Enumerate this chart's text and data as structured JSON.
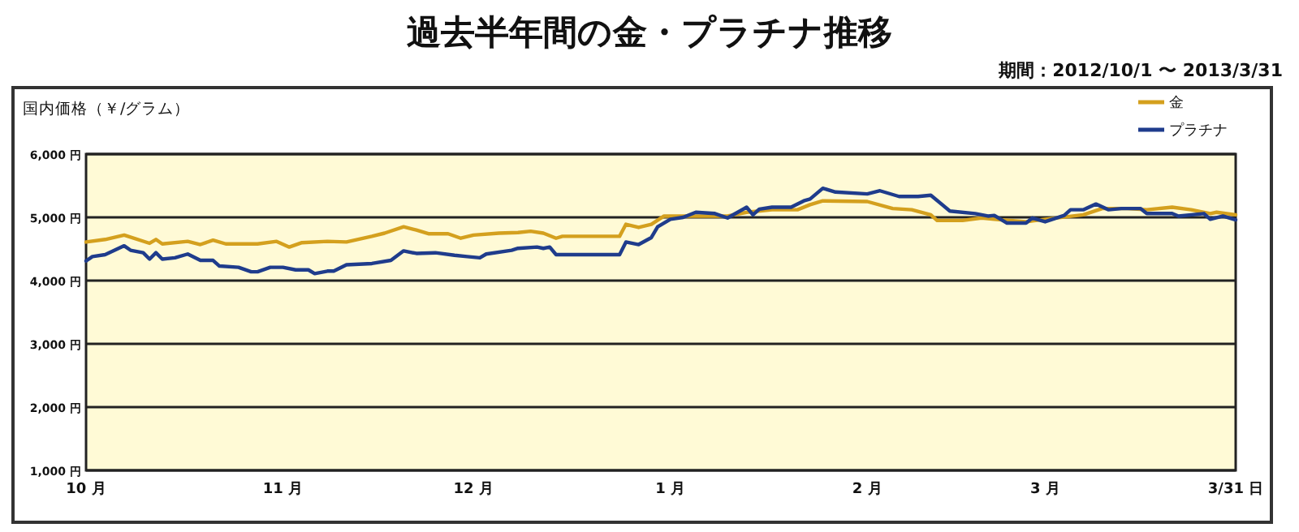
{
  "chart_data": {
    "type": "line",
    "title": "過去半年間の金・プラチナ推移",
    "subtitle": "期間：2012/10/1 〜 2013/3/31",
    "ylabel": "国内価格（￥/グラム）",
    "xlim": [
      "2012-10-01",
      "2013-03-31"
    ],
    "xticks": [
      {
        "value": "2012-10-01",
        "label": "10 月"
      },
      {
        "value": "2012-11-01",
        "label": "11 月"
      },
      {
        "value": "2012-12-01",
        "label": "12 月"
      },
      {
        "value": "2013-01-01",
        "label": "1 月"
      },
      {
        "value": "2013-02-01",
        "label": "2 月"
      },
      {
        "value": "2013-03-01",
        "label": "3 月"
      },
      {
        "value": "2013-03-31",
        "label": "3/31 日"
      }
    ],
    "ylim": [
      1000,
      6000
    ],
    "yticks": [
      {
        "value": 1000,
        "label": "1,000 円"
      },
      {
        "value": 2000,
        "label": "2,000 円"
      },
      {
        "value": 3000,
        "label": "3,000 円"
      },
      {
        "value": 4000,
        "label": "4,000 円"
      },
      {
        "value": 5000,
        "label": "5,000 円"
      },
      {
        "value": 6000,
        "label": "6,000 円"
      }
    ],
    "grid": "y",
    "legend": "top right",
    "series": [
      {
        "name": "金",
        "color": "#d4a01e",
        "x": [
          "2012-10-01",
          "2012-10-04",
          "2012-10-07",
          "2012-10-11",
          "2012-10-12",
          "2012-10-13",
          "2012-10-17",
          "2012-10-19",
          "2012-10-21",
          "2012-10-23",
          "2012-10-28",
          "2012-10-31",
          "2012-11-02",
          "2012-11-04",
          "2012-11-08",
          "2012-11-11",
          "2012-11-15",
          "2012-11-17",
          "2012-11-20",
          "2012-11-22",
          "2012-11-24",
          "2012-11-27",
          "2012-11-29",
          "2012-12-01",
          "2012-12-05",
          "2012-12-08",
          "2012-12-10",
          "2012-12-12",
          "2012-12-14",
          "2012-12-15",
          "2012-12-19",
          "2012-12-24",
          "2012-12-25",
          "2012-12-27",
          "2012-12-29",
          "2012-12-31",
          "2013-01-10",
          "2013-01-13",
          "2013-01-17",
          "2013-01-21",
          "2013-01-23",
          "2013-01-25",
          "2013-02-01",
          "2013-02-05",
          "2013-02-08",
          "2013-02-11",
          "2013-02-12",
          "2013-02-16",
          "2013-02-19",
          "2013-02-21",
          "2013-02-26",
          "2013-03-01",
          "2013-03-07",
          "2013-03-10",
          "2013-03-14",
          "2013-03-17",
          "2013-03-21",
          "2013-03-24",
          "2013-03-27",
          "2013-03-28",
          "2013-03-31"
        ],
        "values": [
          4610,
          4650,
          4720,
          4590,
          4650,
          4580,
          4620,
          4570,
          4640,
          4580,
          4580,
          4620,
          4530,
          4600,
          4620,
          4610,
          4700,
          4750,
          4850,
          4800,
          4740,
          4740,
          4670,
          4720,
          4750,
          4760,
          4780,
          4750,
          4670,
          4700,
          4700,
          4700,
          4890,
          4840,
          4890,
          5020,
          5020,
          5080,
          5120,
          5120,
          5200,
          5260,
          5250,
          5140,
          5120,
          5040,
          4950,
          4950,
          4990,
          4970,
          4930,
          4970,
          5040,
          5140,
          5140,
          5120,
          5160,
          5120,
          5060,
          5080,
          5040
        ]
      },
      {
        "name": "プラチナ",
        "color": "#1f3c8c",
        "x": [
          "2012-10-01",
          "2012-10-02",
          "2012-10-04",
          "2012-10-07",
          "2012-10-08",
          "2012-10-10",
          "2012-10-11",
          "2012-10-12",
          "2012-10-13",
          "2012-10-15",
          "2012-10-17",
          "2012-10-19",
          "2012-10-21",
          "2012-10-22",
          "2012-10-25",
          "2012-10-27",
          "2012-10-28",
          "2012-10-30",
          "2012-11-01",
          "2012-11-03",
          "2012-11-05",
          "2012-11-06",
          "2012-11-08",
          "2012-11-09",
          "2012-11-11",
          "2012-11-15",
          "2012-11-18",
          "2012-11-20",
          "2012-11-22",
          "2012-11-25",
          "2012-11-28",
          "2012-11-30",
          "2012-12-02",
          "2012-12-03",
          "2012-12-07",
          "2012-12-08",
          "2012-12-11",
          "2012-12-12",
          "2012-12-13",
          "2012-12-14",
          "2012-12-24",
          "2012-12-25",
          "2012-12-27",
          "2012-12-29",
          "2012-12-30",
          "2013-01-01",
          "2013-01-03",
          "2013-01-05",
          "2013-01-08",
          "2013-01-10",
          "2013-01-13",
          "2013-01-14",
          "2013-01-15",
          "2013-01-17",
          "2013-01-20",
          "2013-01-22",
          "2013-01-23",
          "2013-01-25",
          "2013-01-27",
          "2013-02-01",
          "2013-02-03",
          "2013-02-06",
          "2013-02-09",
          "2013-02-11",
          "2013-02-14",
          "2013-02-18",
          "2013-02-20",
          "2013-02-21",
          "2013-02-23",
          "2013-02-26",
          "2013-02-27",
          "2013-03-01",
          "2013-03-04",
          "2013-03-05",
          "2013-03-07",
          "2013-03-09",
          "2013-03-11",
          "2013-03-13",
          "2013-03-16",
          "2013-03-17",
          "2013-03-21",
          "2013-03-22",
          "2013-03-26",
          "2013-03-27",
          "2013-03-29",
          "2013-03-31"
        ],
        "values": [
          4310,
          4380,
          4410,
          4550,
          4480,
          4440,
          4340,
          4440,
          4340,
          4360,
          4420,
          4320,
          4320,
          4230,
          4210,
          4140,
          4140,
          4210,
          4210,
          4170,
          4170,
          4110,
          4150,
          4150,
          4250,
          4270,
          4320,
          4470,
          4430,
          4440,
          4400,
          4380,
          4360,
          4420,
          4480,
          4510,
          4530,
          4510,
          4530,
          4410,
          4410,
          4610,
          4570,
          4680,
          4850,
          4970,
          5000,
          5080,
          5060,
          4990,
          5160,
          5040,
          5130,
          5160,
          5160,
          5260,
          5290,
          5460,
          5400,
          5370,
          5420,
          5330,
          5330,
          5350,
          5100,
          5060,
          5020,
          5030,
          4910,
          4910,
          4990,
          4930,
          5030,
          5120,
          5120,
          5210,
          5120,
          5140,
          5140,
          5060,
          5060,
          5020,
          5060,
          4970,
          5020,
          4960
        ]
      }
    ]
  }
}
